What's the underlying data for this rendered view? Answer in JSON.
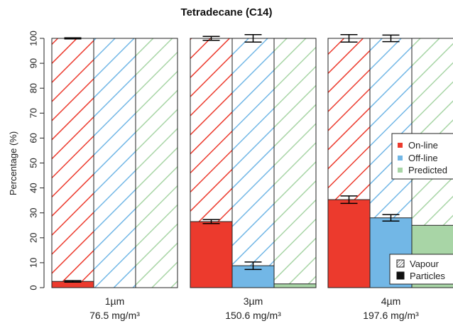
{
  "chart_data": {
    "type": "bar",
    "title": "Tetradecane (C14)",
    "ylabel": "Percentage (%)",
    "xlabel": "",
    "ylim": [
      0,
      100
    ],
    "yticks": [
      0,
      10,
      20,
      30,
      40,
      50,
      60,
      70,
      80,
      90,
      100
    ],
    "grid": false,
    "categories": [
      {
        "size": "1µm",
        "concentration": "76.5 mg/m³"
      },
      {
        "size": "3µm",
        "concentration": "150.6 mg/m³"
      },
      {
        "size": "4µm",
        "concentration": "197.6 mg/m³"
      }
    ],
    "series": [
      {
        "name": "On-line",
        "color": "#ec3a2d",
        "particles": [
          2.5,
          26.5,
          35.3
        ],
        "particles_err": [
          0.3,
          0.8,
          1.5
        ],
        "total": [
          100,
          100,
          100
        ],
        "total_err": [
          0.2,
          0.8,
          1.5
        ]
      },
      {
        "name": "Off-line",
        "color": "#72b7e6",
        "particles": [
          null,
          8.8,
          28.0
        ],
        "particles_err": [
          null,
          1.5,
          1.3
        ],
        "total": [
          100,
          100,
          100
        ],
        "total_err": [
          null,
          1.5,
          1.3
        ]
      },
      {
        "name": "Predicted",
        "color": "#a8d5a6",
        "particles": [
          null,
          1.5,
          25.0
        ],
        "particles_err": [
          null,
          null,
          null
        ],
        "total": [
          100,
          100,
          100
        ],
        "total_err": [
          null,
          null,
          null
        ]
      }
    ],
    "legend": {
      "series_position": "right",
      "series": [
        "On-line",
        "Off-line",
        "Predicted"
      ],
      "phase_position": "bottom-right",
      "phases": [
        {
          "label": "Vapour",
          "pattern": "hatched"
        },
        {
          "label": "Particles",
          "pattern": "solid"
        }
      ]
    }
  }
}
